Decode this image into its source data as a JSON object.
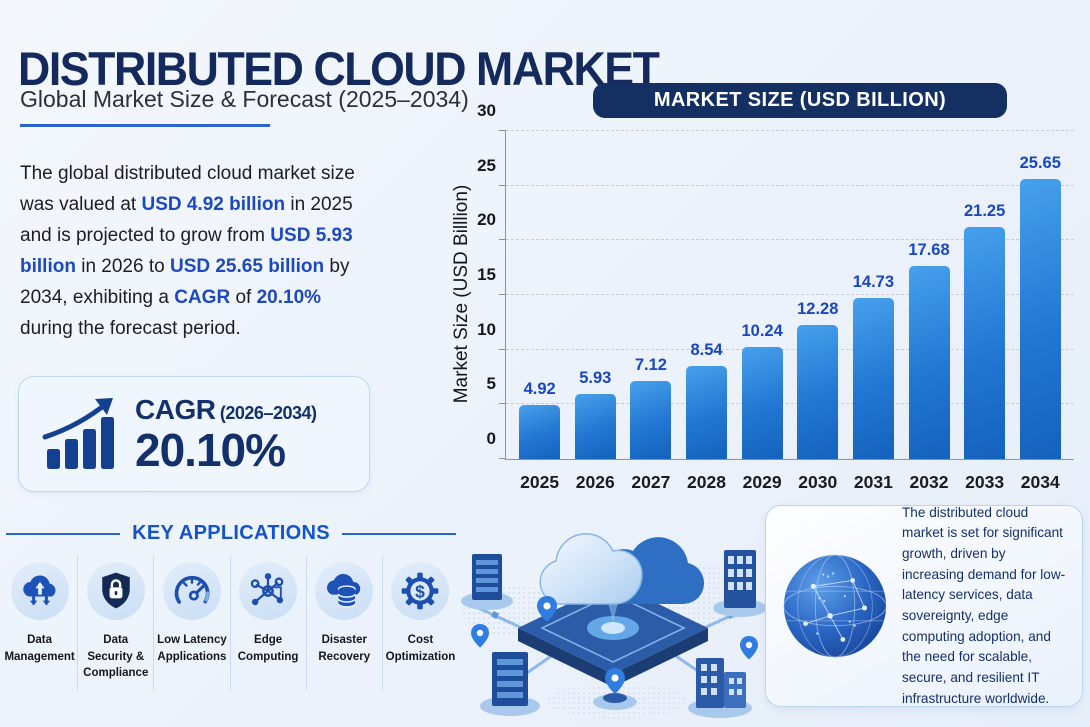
{
  "header": {
    "title": "DISTRIBUTED CLOUD MARKET",
    "subtitle": "Global Market Size & Forecast (2025–2034)"
  },
  "intro": {
    "segments": [
      {
        "text": "The global distributed cloud market size was valued at ",
        "highlight": false
      },
      {
        "text": "USD 4.92 billion",
        "highlight": true
      },
      {
        "text": " in 2025 and is projected to grow from ",
        "highlight": false
      },
      {
        "text": "USD 5.93 billion",
        "highlight": true
      },
      {
        "text": " in 2026 to ",
        "highlight": false
      },
      {
        "text": "USD 25.65 billion",
        "highlight": true
      },
      {
        "text": " by 2034, exhibiting a ",
        "highlight": false
      },
      {
        "text": "CAGR",
        "highlight": true
      },
      {
        "text": " of ",
        "highlight": false
      },
      {
        "text": "20.10%",
        "highlight": true
      },
      {
        "text": " during the forecast period.",
        "highlight": false
      }
    ]
  },
  "cagr_box": {
    "label": "CAGR",
    "period": "(2026–2034)",
    "value": "20.10%"
  },
  "key_applications": {
    "heading": "KEY APPLICATIONS",
    "items": [
      {
        "label": "Data Management",
        "icon": "cloud-arrows-icon"
      },
      {
        "label": "Data Security & Compliance",
        "icon": "shield-lock-icon"
      },
      {
        "label": "Low Latency Applications",
        "icon": "speedometer-icon"
      },
      {
        "label": "Edge Computing",
        "icon": "network-nodes-icon"
      },
      {
        "label": "Disaster Recovery",
        "icon": "cloud-database-icon"
      },
      {
        "label": "Cost Optimization",
        "icon": "gear-dollar-icon"
      }
    ]
  },
  "chart": {
    "header": "MARKET SIZE (USD BILLION)",
    "ylabel": "Market Size (USD Billlion)"
  },
  "chart_data": {
    "type": "bar",
    "title": "MARKET SIZE (USD BILLION)",
    "categories": [
      "2025",
      "2026",
      "2027",
      "2028",
      "2029",
      "2030",
      "2031",
      "2032",
      "2033",
      "2034"
    ],
    "values": [
      4.92,
      5.93,
      7.12,
      8.54,
      10.24,
      12.28,
      14.73,
      17.68,
      21.25,
      25.65
    ],
    "xlabel": "",
    "ylabel": "Market Size (USD Billlion)",
    "ylim": [
      0,
      30
    ],
    "yticks": [
      0,
      5,
      10,
      15,
      20,
      25,
      30
    ],
    "grid": "horizontal-dashed",
    "legend": "none",
    "bar_color_top": "#47a0ec",
    "bar_color_bottom": "#1462bd",
    "value_label_color": "#1a46bf"
  },
  "insight_box": {
    "text": "The distributed cloud market is set for significant growth, driven by increasing demand for low-latency services, data sovereignty, edge computing adoption, and the need for scalable, secure, and resilient IT infrastructure worldwide."
  },
  "glyphs": {
    "dollar": "$"
  },
  "colors": {
    "navy": "#14295c",
    "royal_blue": "#1c49c2",
    "accent_blue": "#2a64cc",
    "pill_bg": "#142f62",
    "background": "#edf3fb"
  }
}
